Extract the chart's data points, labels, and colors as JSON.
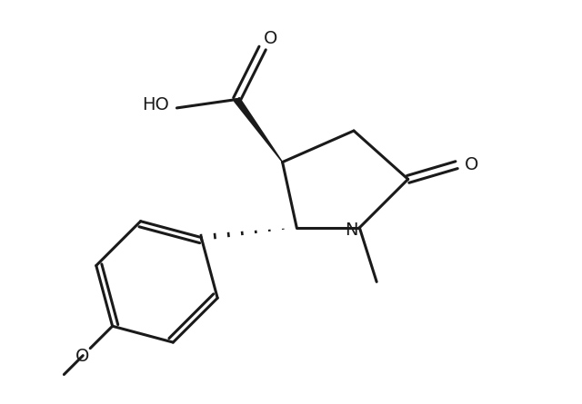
{
  "background_color": "#ffffff",
  "line_color": "#1a1a1a",
  "line_width": 2.2,
  "text_color": "#1a1a1a",
  "font_size": 14,
  "fig_width": 6.4,
  "fig_height": 4.45,
  "dpi": 100,
  "xlim": [
    0,
    10
  ],
  "ylim": [
    0,
    7
  ]
}
